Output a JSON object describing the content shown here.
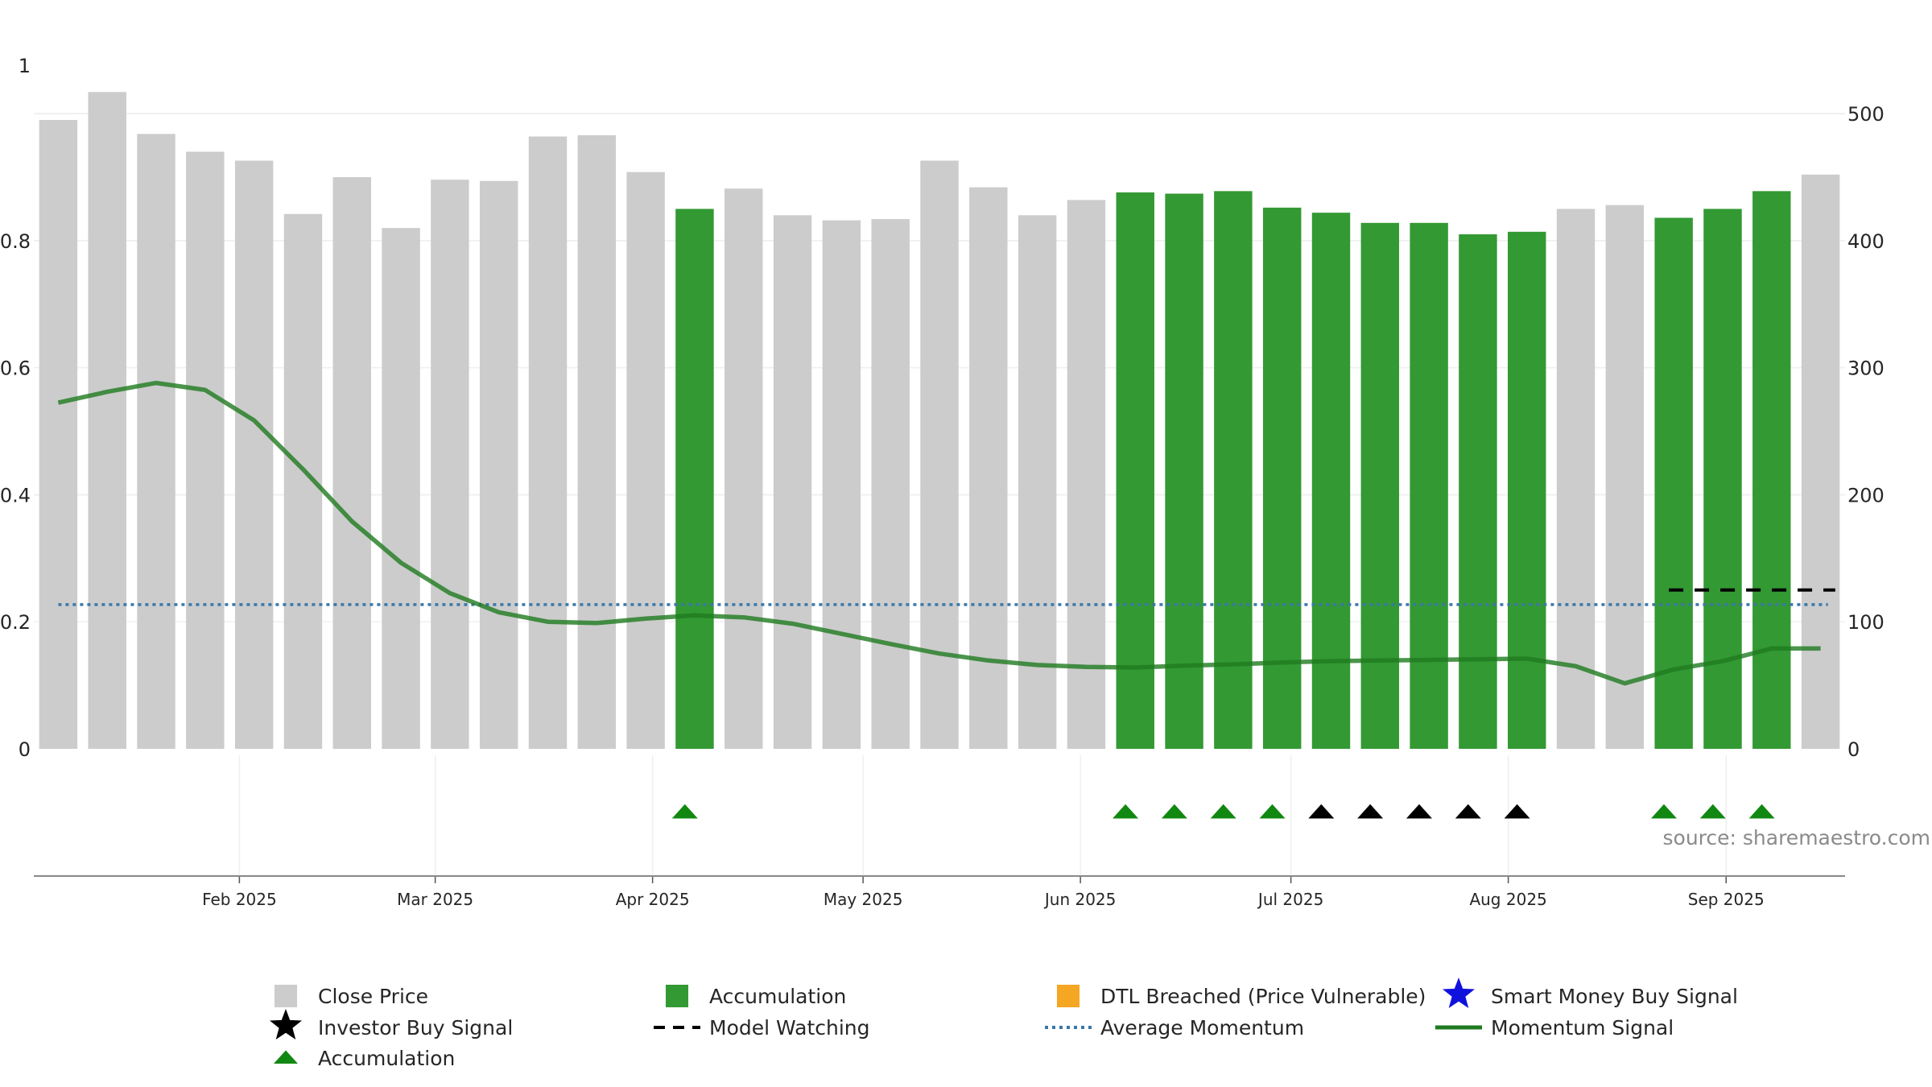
{
  "chart_data": {
    "type": "bar",
    "title": "",
    "xlabel": "",
    "ylabel": "",
    "left_axis": {
      "range": [
        0,
        1.08
      ],
      "ticks": [
        0,
        0.2,
        0.4,
        0.6,
        0.8
      ],
      "tick_labels": [
        "0",
        "0.2",
        "0.4",
        "0.6",
        "0.8"
      ],
      "top_label": "1"
    },
    "right_axis": {
      "range": [
        0,
        540
      ],
      "ticks": [
        0,
        100,
        200,
        300,
        400,
        500
      ],
      "tick_labels": [
        "0",
        "100",
        "200",
        "300",
        "400",
        "500"
      ]
    },
    "x_ticks": [
      {
        "label": "Feb 2025",
        "x": 4.2
      },
      {
        "label": "Mar 2025",
        "x": 8.2
      },
      {
        "label": "Apr 2025",
        "x": 12.64
      },
      {
        "label": "May 2025",
        "x": 16.94
      },
      {
        "label": "Jun 2025",
        "x": 21.38
      },
      {
        "label": "Jul 2025",
        "x": 25.68
      },
      {
        "label": "Aug 2025",
        "x": 30.12
      },
      {
        "label": "Sep 2025",
        "x": 34.57
      }
    ],
    "grid": true,
    "close_price": [
      495,
      517,
      484,
      470,
      463,
      421,
      450,
      410,
      448,
      447,
      482,
      483,
      454,
      425,
      441,
      420,
      416,
      417,
      463,
      442,
      420,
      432,
      438,
      437,
      439,
      426,
      422,
      414,
      414,
      405,
      407,
      425,
      428,
      418,
      425,
      439,
      452
    ],
    "accumulation_flags": [
      0,
      0,
      0,
      0,
      0,
      0,
      0,
      0,
      0,
      0,
      0,
      0,
      0,
      1,
      0,
      0,
      0,
      0,
      0,
      0,
      0,
      0,
      1,
      1,
      1,
      1,
      1,
      1,
      1,
      1,
      1,
      0,
      0,
      1,
      1,
      1,
      0
    ],
    "momentum_signal": [
      0.545,
      0.562,
      0.576,
      0.565,
      0.517,
      0.44,
      0.358,
      0.293,
      0.245,
      0.215,
      0.2,
      0.198,
      0.205,
      0.21,
      0.207,
      0.197,
      0.181,
      0.165,
      0.15,
      0.139,
      0.132,
      0.129,
      0.128,
      0.131,
      0.133,
      0.136,
      0.138,
      0.139,
      0.14,
      0.141,
      0.142,
      0.13,
      0.103,
      0.125,
      0.138,
      0.158,
      0.158
    ],
    "average_momentum": 0.227,
    "model_watching": {
      "x_start": 33.4,
      "x_end": 36.8,
      "y": 0.25
    },
    "accumulation_markers": [
      13.3,
      22.3,
      23.3,
      24.3,
      25.3,
      33.3,
      34.3,
      35.3
    ],
    "investor_buy_markers": [
      26.3,
      27.3,
      28.3,
      29.3,
      30.3
    ],
    "colors": {
      "close_price_bar": "#cccccc",
      "accumulation_bar": "#339933",
      "momentum_line": "#1f7a1f",
      "average_momentum": "#3a77a8",
      "accumulation_marker": "#118811",
      "investor_marker": "#000000",
      "dtl_breached": "#f5a623",
      "smart_money": "#1111dd"
    },
    "legend": [
      {
        "label": "Close Price",
        "symbol": "gray-square"
      },
      {
        "label": "Accumulation",
        "symbol": "green-square"
      },
      {
        "label": "DTL Breached (Price Vulnerable)",
        "symbol": "orange-square"
      },
      {
        "label": "Smart Money Buy Signal",
        "symbol": "blue-star"
      },
      {
        "label": "Investor Buy Signal",
        "symbol": "black-star"
      },
      {
        "label": "Model Watching",
        "symbol": "black-dashed-line"
      },
      {
        "label": "Average Momentum",
        "symbol": "blue-dotted-line"
      },
      {
        "label": "Momentum Signal",
        "symbol": "green-line"
      },
      {
        "label": "Accumulation",
        "symbol": "green-triangle"
      }
    ],
    "legend_position": "bottom",
    "source": "source: sharemaestro.com"
  }
}
